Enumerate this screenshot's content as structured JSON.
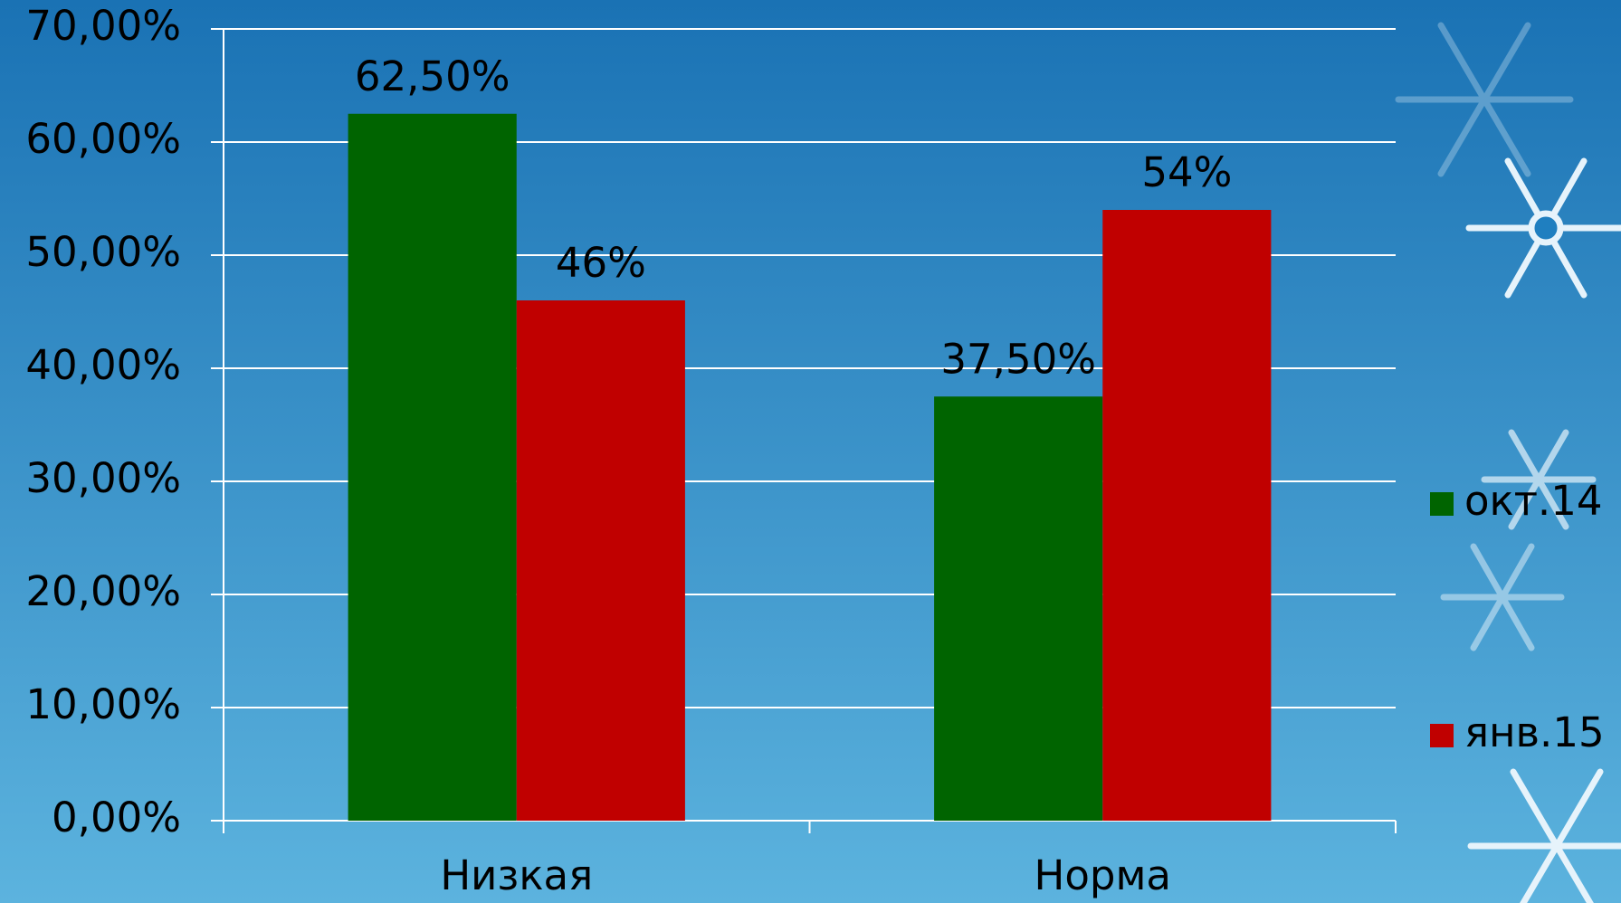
{
  "chart_data": {
    "type": "bar",
    "categories": [
      "Низкая",
      "Норма"
    ],
    "series": [
      {
        "name": "окт.14",
        "color": "#006400",
        "values": [
          62.5,
          37.5
        ],
        "value_labels": [
          "62,50%",
          "37,50%"
        ]
      },
      {
        "name": "янв.15",
        "color": "#c00000",
        "values": [
          46,
          54
        ],
        "value_labels": [
          "46%",
          "54%"
        ]
      }
    ],
    "ylim": [
      0,
      70
    ],
    "yticks": [
      {
        "value": 0,
        "label": "0,00%"
      },
      {
        "value": 10,
        "label": "10,00%"
      },
      {
        "value": 20,
        "label": "20,00%"
      },
      {
        "value": 30,
        "label": "30,00%"
      },
      {
        "value": 40,
        "label": "40,00%"
      },
      {
        "value": 50,
        "label": "50,00%"
      },
      {
        "value": 60,
        "label": "60,00%"
      },
      {
        "value": 70,
        "label": "70,00%"
      }
    ],
    "grid": true,
    "legend": "right"
  }
}
